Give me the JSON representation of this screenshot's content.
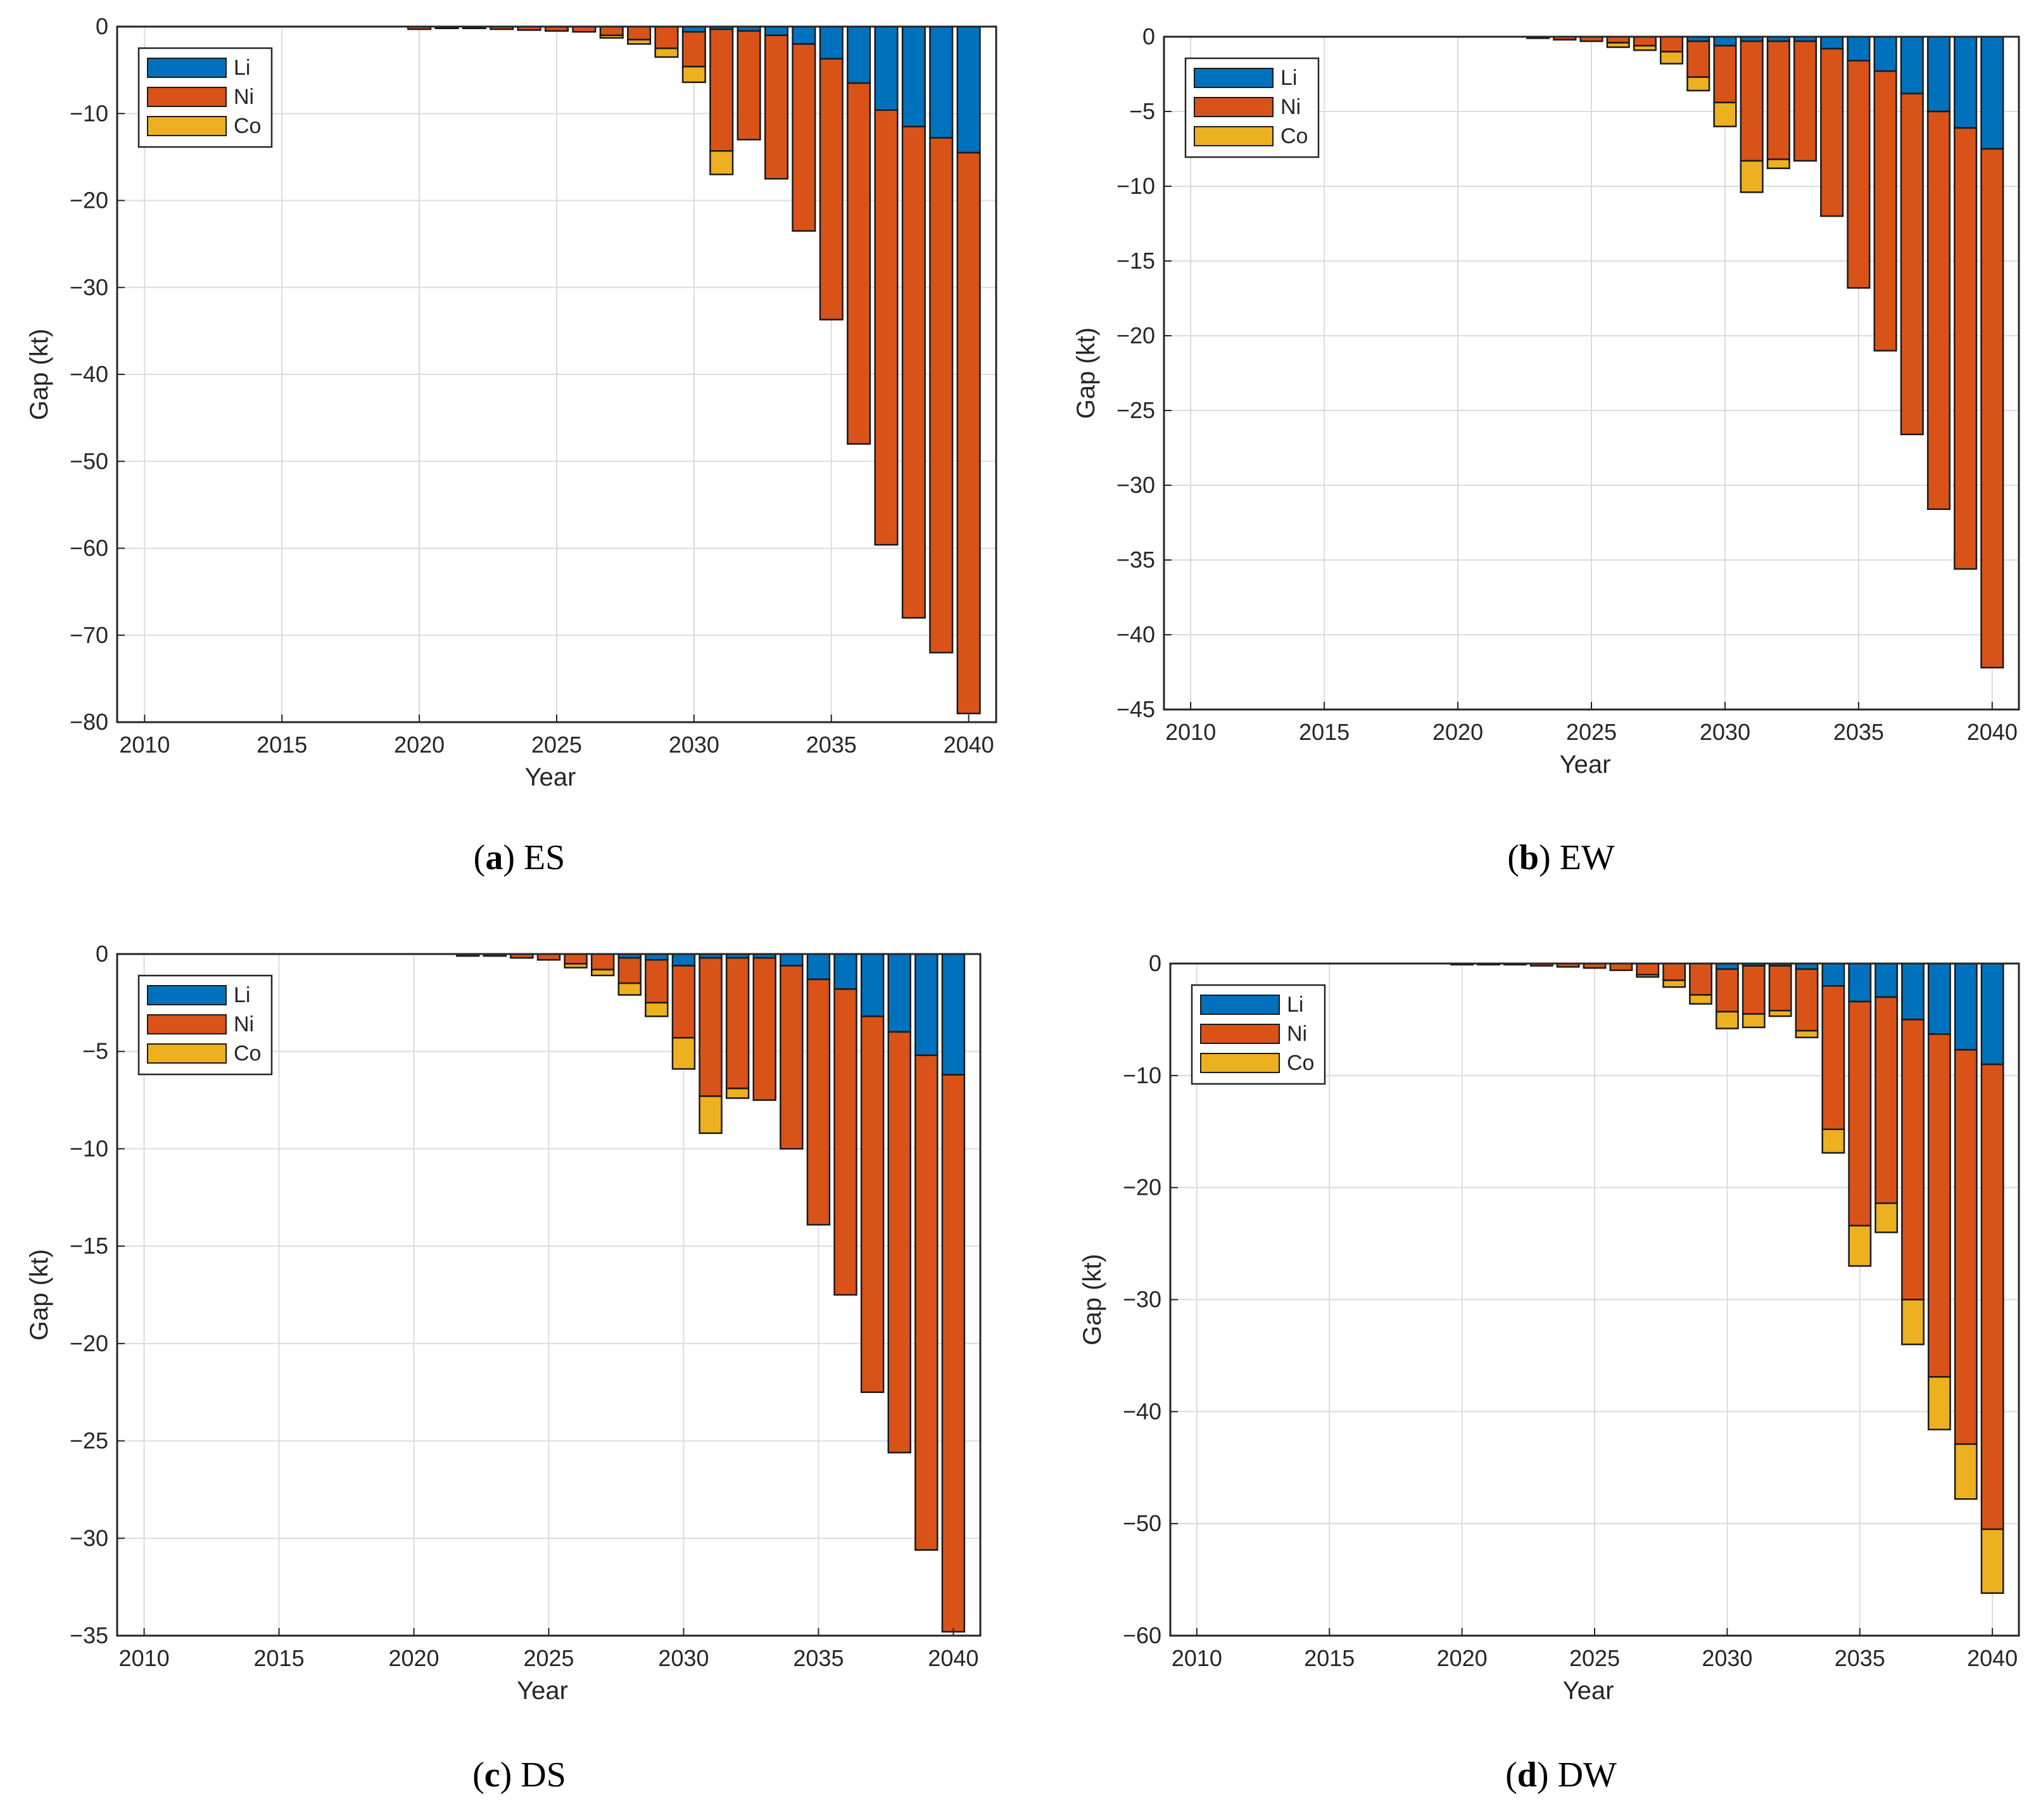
{
  "colors": {
    "Li": "#0072BD",
    "Ni": "#D95319",
    "Co": "#EDB120"
  },
  "chart_data": [
    {
      "type": "bar",
      "stacked": true,
      "panel": "a",
      "title": "ES",
      "xlabel": "Year",
      "ylabel": "Gap (kt)",
      "xlim": [
        2009,
        2041
      ],
      "ylim": [
        -80,
        0
      ],
      "xticks": [
        2010,
        2015,
        2020,
        2025,
        2030,
        2035,
        2040
      ],
      "yticks": [
        0,
        -10,
        -20,
        -30,
        -40,
        -50,
        -60,
        -70,
        -80
      ],
      "ytick_labels": [
        "0",
        "−10",
        "−20",
        "−30",
        "−40",
        "−50",
        "−60",
        "−70",
        "−80"
      ],
      "legend": [
        "Li",
        "Ni",
        "Co"
      ],
      "legend_position": "top-left",
      "grid": true,
      "x": [
        2020,
        2021,
        2022,
        2023,
        2024,
        2025,
        2026,
        2027,
        2028,
        2029,
        2030,
        2031,
        2032,
        2033,
        2034,
        2035,
        2036,
        2037,
        2038,
        2039,
        2040
      ],
      "series": [
        {
          "name": "Li",
          "values": [
            0,
            0,
            0,
            0,
            0,
            0,
            0,
            0,
            0,
            0,
            -0.6,
            -0.3,
            -0.5,
            -1,
            -2,
            -3.7,
            -6.5,
            -9.6,
            -11.5,
            -12.8,
            -14.5
          ]
        },
        {
          "name": "Ni",
          "values": [
            -0.3,
            -0.2,
            -0.2,
            -0.3,
            -0.4,
            -0.5,
            -0.6,
            -1,
            -1.5,
            -2.5,
            -4,
            -14,
            -12.5,
            -16.5,
            -21.5,
            -30,
            -41.5,
            -50,
            -56.5,
            -59.2,
            -64.5
          ]
        },
        {
          "name": "Co",
          "values": [
            0,
            0,
            0,
            0,
            0,
            0,
            0,
            -0.3,
            -0.5,
            -1,
            -1.8,
            -2.7,
            0,
            0,
            0,
            0,
            0,
            0,
            0,
            0,
            0
          ]
        }
      ]
    },
    {
      "type": "bar",
      "stacked": true,
      "panel": "b",
      "title": "EW",
      "xlabel": "Year",
      "ylabel": "Gap (kt)",
      "xlim": [
        2009,
        2041
      ],
      "ylim": [
        -45,
        0
      ],
      "xticks": [
        2010,
        2015,
        2020,
        2025,
        2030,
        2035,
        2040
      ],
      "yticks": [
        0,
        -5,
        -10,
        -15,
        -20,
        -25,
        -30,
        -35,
        -40,
        -45
      ],
      "ytick_labels": [
        "0",
        "−5",
        "−10",
        "−15",
        "−20",
        "−25",
        "−30",
        "−35",
        "−40",
        "−45"
      ],
      "legend": [
        "Li",
        "Ni",
        "Co"
      ],
      "legend_position": "top-left",
      "grid": true,
      "x": [
        2023,
        2024,
        2025,
        2026,
        2027,
        2028,
        2029,
        2030,
        2031,
        2032,
        2033,
        2034,
        2035,
        2036,
        2037,
        2038,
        2039,
        2040
      ],
      "series": [
        {
          "name": "Li",
          "values": [
            0,
            0,
            0,
            0,
            0,
            0,
            -0.3,
            -0.6,
            -0.3,
            -0.3,
            -0.3,
            -0.8,
            -1.6,
            -2.3,
            -3.8,
            -5,
            -6.1,
            -7.5
          ]
        },
        {
          "name": "Ni",
          "values": [
            -0.1,
            -0.2,
            -0.3,
            -0.4,
            -0.6,
            -1,
            -2.4,
            -3.8,
            -8,
            -7.9,
            -8,
            -11.2,
            -15.2,
            -18.7,
            -22.8,
            -26.6,
            -29.5,
            -34.7
          ]
        },
        {
          "name": "Co",
          "values": [
            0,
            0,
            0,
            -0.3,
            -0.3,
            -0.8,
            -0.9,
            -1.6,
            -2.1,
            -0.6,
            0,
            0,
            0,
            0,
            0,
            0,
            0,
            0
          ]
        }
      ]
    },
    {
      "type": "bar",
      "stacked": true,
      "panel": "c",
      "title": "DS",
      "xlabel": "Year",
      "ylabel": "Gap (kt)",
      "xlim": [
        2009,
        2041
      ],
      "ylim": [
        -35,
        0
      ],
      "xticks": [
        2010,
        2015,
        2020,
        2025,
        2030,
        2035,
        2040
      ],
      "yticks": [
        0,
        -5,
        -10,
        -15,
        -20,
        -25,
        -30,
        -35
      ],
      "ytick_labels": [
        "0",
        "−5",
        "−10",
        "−15",
        "−20",
        "−25",
        "−30",
        "−35"
      ],
      "legend": [
        "Li",
        "Ni",
        "Co"
      ],
      "legend_position": "top-left",
      "grid": true,
      "x": [
        2022,
        2023,
        2024,
        2025,
        2026,
        2027,
        2028,
        2029,
        2030,
        2031,
        2032,
        2033,
        2034,
        2035,
        2036,
        2037,
        2038,
        2039,
        2040
      ],
      "series": [
        {
          "name": "Li",
          "values": [
            0,
            0,
            0,
            0,
            0,
            0,
            -0.2,
            -0.3,
            -0.6,
            -0.2,
            -0.2,
            -0.2,
            -0.6,
            -1.3,
            -1.8,
            -3.2,
            -4,
            -5.2,
            -6.2
          ]
        },
        {
          "name": "Ni",
          "values": [
            -0.1,
            -0.1,
            -0.2,
            -0.3,
            -0.5,
            -0.8,
            -1.3,
            -2.2,
            -3.7,
            -7.1,
            -6.7,
            -7.3,
            -9.4,
            -12.6,
            -15.7,
            -19.3,
            -21.6,
            -25.4,
            -28.6
          ]
        },
        {
          "name": "Co",
          "values": [
            0,
            0,
            0,
            0,
            -0.2,
            -0.3,
            -0.6,
            -0.7,
            -1.6,
            -1.9,
            -0.5,
            0,
            0,
            0,
            0,
            0,
            0,
            0,
            0
          ]
        }
      ]
    },
    {
      "type": "bar",
      "stacked": true,
      "panel": "d",
      "title": "DW",
      "xlabel": "Year",
      "ylabel": "Gap (kt)",
      "xlim": [
        2009,
        2041
      ],
      "ylim": [
        -60,
        0
      ],
      "xticks": [
        2010,
        2015,
        2020,
        2025,
        2030,
        2035,
        2040
      ],
      "yticks": [
        0,
        -10,
        -20,
        -30,
        -40,
        -50,
        -60
      ],
      "ytick_labels": [
        "0",
        "−10",
        "−20",
        "−30",
        "−40",
        "−50",
        "−60"
      ],
      "legend": [
        "Li",
        "Ni",
        "Co"
      ],
      "legend_position": "top-left",
      "grid": true,
      "x": [
        2020,
        2021,
        2022,
        2023,
        2024,
        2025,
        2026,
        2027,
        2028,
        2029,
        2030,
        2031,
        2032,
        2033,
        2034,
        2035,
        2036,
        2037,
        2038,
        2039,
        2040
      ],
      "series": [
        {
          "name": "Li",
          "values": [
            0,
            0,
            0,
            0,
            0,
            0,
            0,
            0,
            0,
            0,
            -0.5,
            -0.2,
            -0.2,
            -0.5,
            -2,
            -3.4,
            -3,
            -5,
            -6.3,
            -7.7,
            -9
          ]
        },
        {
          "name": "Ni",
          "values": [
            -0.1,
            -0.1,
            -0.1,
            -0.2,
            -0.3,
            -0.4,
            -0.6,
            -1,
            -1.5,
            -2.8,
            -3.8,
            -4.3,
            -4,
            -5.5,
            -12.8,
            -20,
            -18.4,
            -25,
            -30.6,
            -35.2,
            -41.5
          ]
        },
        {
          "name": "Co",
          "values": [
            0,
            0,
            0,
            0,
            0,
            0,
            0,
            -0.2,
            -0.6,
            -0.8,
            -1.5,
            -1.2,
            -0.5,
            -0.6,
            -2.1,
            -3.6,
            -2.6,
            -4,
            -4.7,
            -4.9,
            -5.7
          ]
        }
      ]
    }
  ],
  "captions": [
    {
      "label": "a",
      "text": "ES"
    },
    {
      "label": "b",
      "text": "EW"
    },
    {
      "label": "c",
      "text": "DS"
    },
    {
      "label": "d",
      "text": "DW"
    }
  ]
}
